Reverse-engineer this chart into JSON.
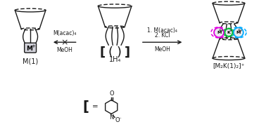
{
  "bg_color": "#ffffff",
  "line_color": "#1a1a1a",
  "label_M1": "M(1)",
  "label_1H4": "1H₄",
  "label_complex": "[M₂K(1)₂]⁺",
  "label_left_arrow_top": "M(acac)₄",
  "label_left_arrow_cross": "×",
  "label_left_arrow_bottom": "MeOH",
  "label_right_arrow_line1": "1. M(acac)₄",
  "label_right_arrow_line2": "2. KCl",
  "label_right_arrow_bottom": "MeOH",
  "circle_magenta": "#e000e0",
  "circle_cyan": "#00aaff",
  "circle_green": "#00bb33",
  "figsize": [
    3.78,
    1.84
  ],
  "dpi": 100
}
